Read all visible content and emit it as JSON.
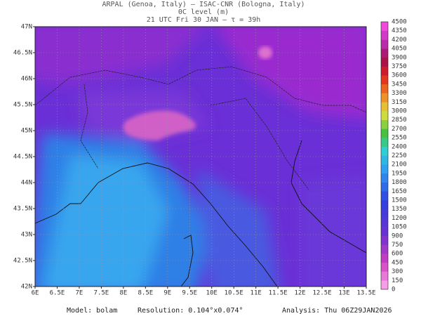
{
  "header": {
    "line1": "ARPAL (Genoa, Italy)  —  ISAC-CNR (Bologna, Italy)",
    "line2": "0C level (m)",
    "line3": "21 UTC Fri 30 JAN  —  τ = 39h"
  },
  "map": {
    "lat_labels": [
      "42N",
      "42.5N",
      "43N",
      "43.5N",
      "44N",
      "44.5N",
      "45N",
      "45.5N",
      "46N",
      "46.5N",
      "47N"
    ],
    "lon_labels": [
      "6E",
      "6.5E",
      "7E",
      "7.5E",
      "8E",
      "8.5E",
      "9E",
      "9.5E",
      "10E",
      "10.5E",
      "11E",
      "11.5E",
      "12E",
      "12.5E",
      "13E",
      "13.5E"
    ]
  },
  "colorbar": {
    "labels": [
      "0",
      "150",
      "300",
      "450",
      "600",
      "750",
      "900",
      "1050",
      "1200",
      "1350",
      "1500",
      "1650",
      "1800",
      "1950",
      "2100",
      "2250",
      "2400",
      "2550",
      "2700",
      "2850",
      "3000",
      "3150",
      "3300",
      "3450",
      "3600",
      "3750",
      "3900",
      "4050",
      "4200",
      "4350",
      "4500"
    ]
  },
  "footer": {
    "model": "Model: bolam",
    "resolution": "Resolution: 0.104°x0.074°",
    "analysis": "Analysis: Thu 06Z29JAN2026"
  }
}
